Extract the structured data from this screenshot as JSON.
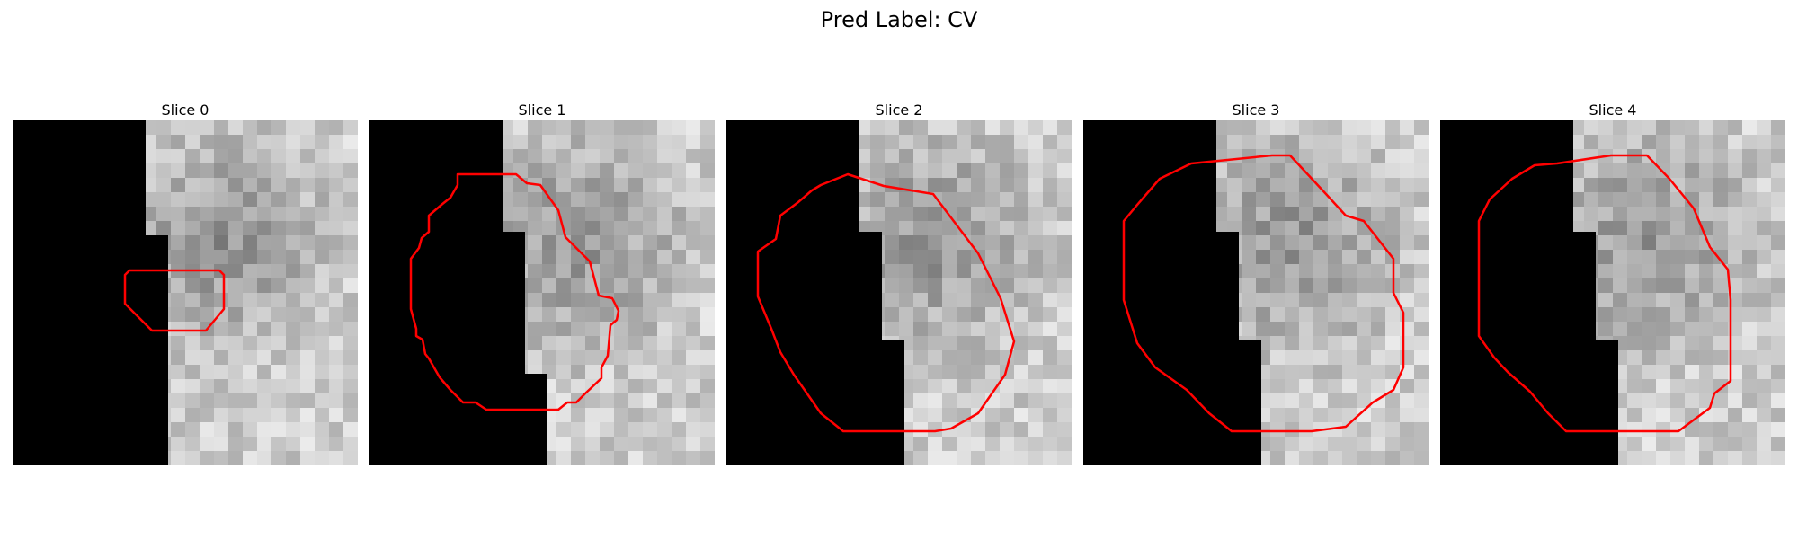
{
  "figure": {
    "title": "Pred Label: CV"
  },
  "panels": [
    {
      "title": "Slice 0"
    },
    {
      "title": "Slice 1"
    },
    {
      "title": "Slice 2"
    },
    {
      "title": "Slice 3"
    },
    {
      "title": "Slice 4"
    }
  ],
  "colors": {
    "background": "#ffffff",
    "mask": "#000000",
    "contour": "#ff0000",
    "texture_light": "#f2f2f2",
    "texture_dark": "#8c8c8c"
  }
}
